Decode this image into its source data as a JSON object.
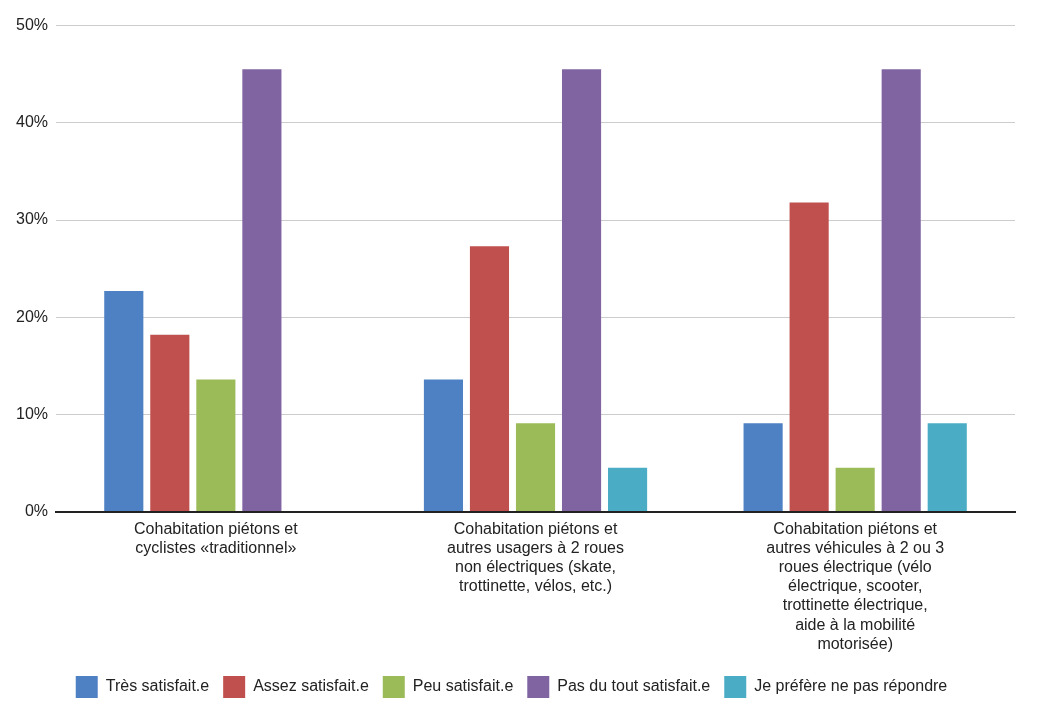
{
  "chart_data": {
    "type": "bar",
    "categories": [
      "Cohabitation piétons et cyclistes «traditionnel»",
      "Cohabitation piétons et autres usagers à 2 roues non électriques (skate, trottinette, vélos, etc.)",
      "Cohabitation piétons et autres véhicules à 2 ou 3 roues électrique (vélo électrique, scooter, trottinette électrique, aide à la mobilité motorisée)"
    ],
    "series": [
      {
        "name": "Très satisfait.e",
        "color": "#4e81c4",
        "values": [
          22.7,
          13.6,
          9.1
        ]
      },
      {
        "name": "Assez satisfait.e",
        "color": "#c0504d",
        "values": [
          18.2,
          27.3,
          31.8
        ]
      },
      {
        "name": "Peu satisfait.e",
        "color": "#9bbb59",
        "values": [
          13.6,
          9.1,
          4.5
        ]
      },
      {
        "name": "Pas du tout satisfait.e",
        "color": "#8064a2",
        "values": [
          45.5,
          45.5,
          45.5
        ]
      },
      {
        "name": "Je préfère ne pas répondre",
        "color": "#4bacc6",
        "values": [
          0,
          4.5,
          9.1
        ]
      }
    ],
    "ylim": [
      0,
      50
    ],
    "yticks": [
      {
        "value": 0,
        "label": "0%"
      },
      {
        "value": 10,
        "label": "10%"
      },
      {
        "value": 20,
        "label": "20%"
      },
      {
        "value": 30,
        "label": "30%"
      },
      {
        "value": 40,
        "label": "40%"
      },
      {
        "value": 50,
        "label": "50%"
      }
    ],
    "grid": "y",
    "legend": "bottom"
  }
}
